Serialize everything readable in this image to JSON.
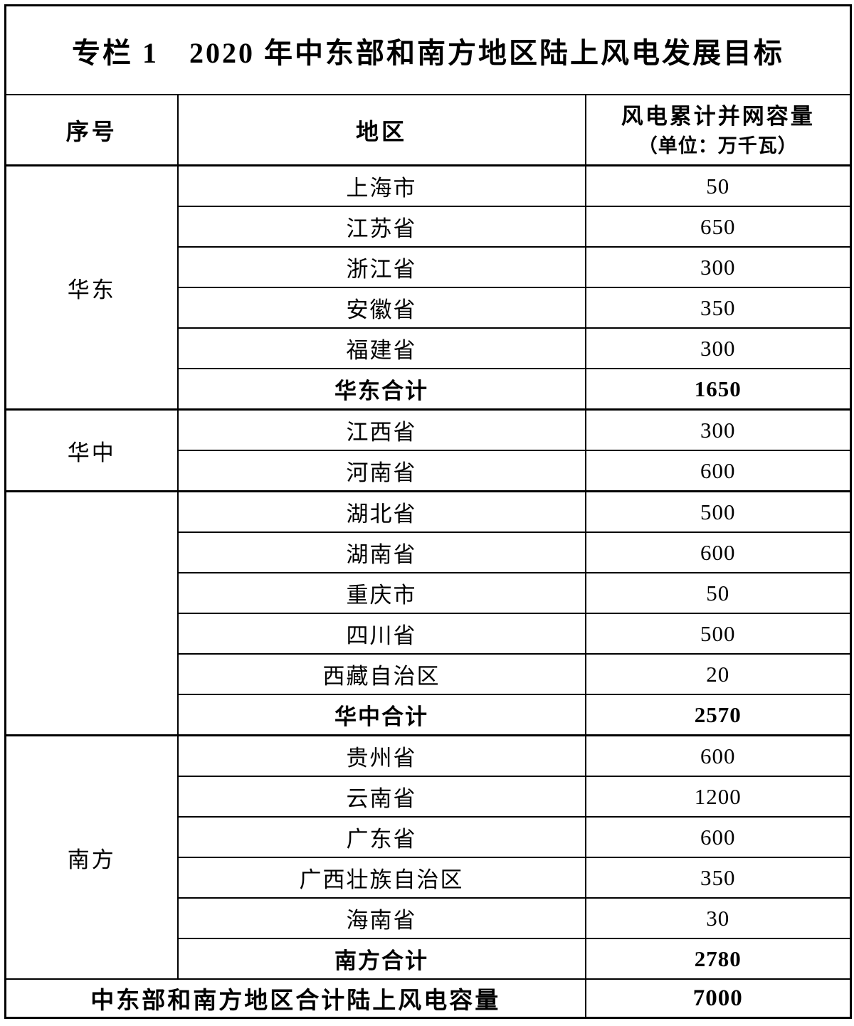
{
  "title": "专栏 1　2020 年中东部和南方地区陆上风电发展目标",
  "header": {
    "seq": "序号",
    "region": "地区",
    "capacity_line1": "风电累计并网容量",
    "capacity_line2": "（单位：万千瓦）"
  },
  "sections": [
    {
      "label": "华东",
      "rows": [
        {
          "region": "上海市",
          "value": "50"
        },
        {
          "region": "江苏省",
          "value": "650"
        },
        {
          "region": "浙江省",
          "value": "300"
        },
        {
          "region": "安徽省",
          "value": "350"
        },
        {
          "region": "福建省",
          "value": "300"
        },
        {
          "region": "华东合计",
          "value": "1650",
          "bold": true
        }
      ]
    },
    {
      "label": "华中",
      "rows": [
        {
          "region": "江西省",
          "value": "300"
        },
        {
          "region": "河南省",
          "value": "600"
        }
      ]
    },
    {
      "label": "",
      "rows": [
        {
          "region": "湖北省",
          "value": "500"
        },
        {
          "region": "湖南省",
          "value": "600"
        },
        {
          "region": "重庆市",
          "value": "50"
        },
        {
          "region": "四川省",
          "value": "500"
        },
        {
          "region": "西藏自治区",
          "value": "20"
        },
        {
          "region": "华中合计",
          "value": "2570",
          "bold": true
        }
      ]
    },
    {
      "label": "南方",
      "rows": [
        {
          "region": "贵州省",
          "value": "600"
        },
        {
          "region": "云南省",
          "value": "1200"
        },
        {
          "region": "广东省",
          "value": "600"
        },
        {
          "region": "广西壮族自治区",
          "value": "350"
        },
        {
          "region": "海南省",
          "value": "30"
        },
        {
          "region": "南方合计",
          "value": "2780",
          "bold": true
        }
      ]
    }
  ],
  "footer": {
    "label": "中东部和南方地区合计陆上风电容量",
    "value": "7000"
  }
}
